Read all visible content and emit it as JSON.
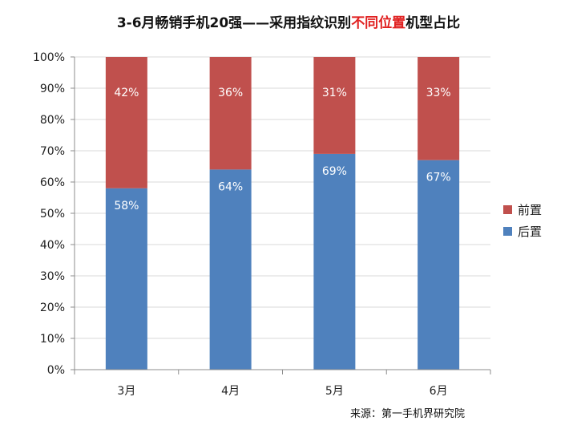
{
  "chart_data": {
    "type": "bar",
    "stacked": true,
    "title_parts": [
      {
        "text": "3-6月畅销手机20强——采用指纹识别",
        "accent": false
      },
      {
        "text": "不同位置",
        "accent": true
      },
      {
        "text": "机型占比",
        "accent": false
      }
    ],
    "title": "3-6月畅销手机20强——采用指纹识别不同位置机型占比",
    "categories": [
      "3月",
      "4月",
      "5月",
      "6月"
    ],
    "series": [
      {
        "name": "后置",
        "values": [
          58,
          64,
          69,
          67
        ],
        "labels": [
          "58%",
          "64%",
          "69%",
          "67%"
        ],
        "color": "#4f81bd"
      },
      {
        "name": "前置",
        "values": [
          42,
          36,
          31,
          33
        ],
        "labels": [
          "42%",
          "36%",
          "31%",
          "33%"
        ],
        "color": "#c0504d"
      }
    ],
    "legend_order": [
      "前置",
      "后置"
    ],
    "legend_position": "right",
    "ylim": [
      0,
      100
    ],
    "yticks": [
      0,
      10,
      20,
      30,
      40,
      50,
      60,
      70,
      80,
      90,
      100
    ],
    "ytick_labels": [
      "0%",
      "10%",
      "20%",
      "30%",
      "40%",
      "50%",
      "60%",
      "70%",
      "80%",
      "90%",
      "100%"
    ],
    "grid": true,
    "grid_color": "#d9d9d9",
    "source": "来源：第一手机界研究院"
  }
}
